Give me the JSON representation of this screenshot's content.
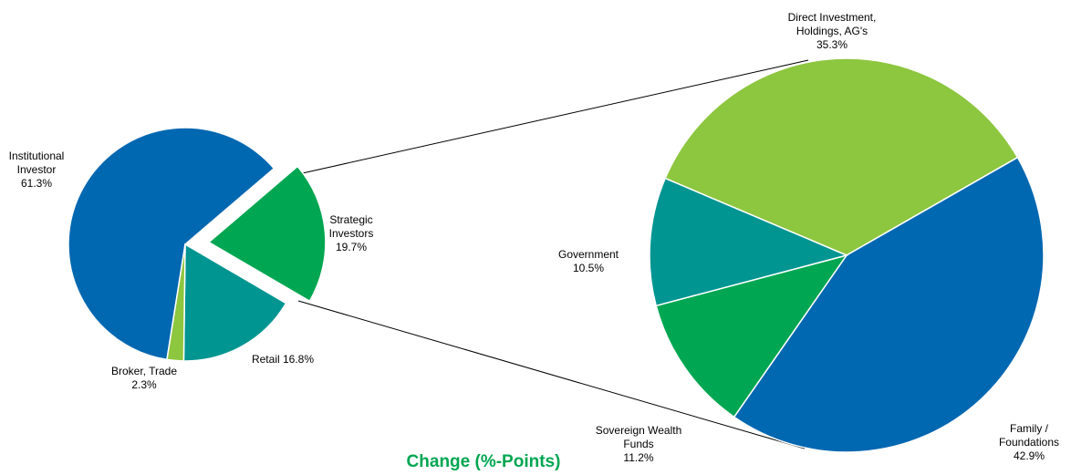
{
  "chart_data": [
    {
      "type": "pie",
      "categories": [
        "Institutional Investor",
        "Strategic Investors",
        "Retail",
        "Broker, Trade"
      ],
      "values": [
        61.3,
        19.7,
        16.8,
        2.3
      ],
      "value_labels": [
        "61.3%",
        "19.7%",
        "16.8%",
        "2.3%"
      ],
      "colors": [
        "#0067b1",
        "#00a651",
        "#009591",
        "#8dc63f"
      ]
    },
    {
      "type": "pie",
      "title": "Change (%-Points)",
      "categories": [
        "Direct Investment, Holdings, AG's",
        "Family / Foundations",
        "Sovereign Wealth Funds",
        "Government"
      ],
      "values": [
        35.3,
        42.9,
        11.2,
        10.5
      ],
      "value_labels": [
        "35.3%",
        "42.9%",
        "11.2%",
        "10.5%"
      ],
      "colors": [
        "#8dc63f",
        "#0067b1",
        "#00a651",
        "#009591"
      ]
    }
  ]
}
